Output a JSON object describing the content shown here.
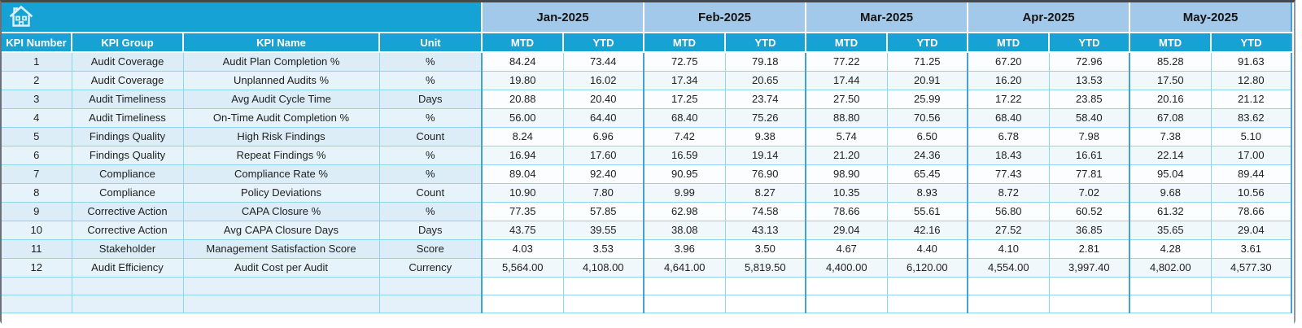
{
  "header": {
    "left_columns": [
      "KPI Number",
      "KPI Group",
      "KPI Name",
      "Unit"
    ],
    "months": [
      "Jan-2025",
      "Feb-2025",
      "Mar-2025",
      "Apr-2025",
      "May-2025"
    ],
    "sub_columns": [
      "MTD",
      "YTD"
    ],
    "home_icon": "home"
  },
  "colors": {
    "header_cyan": "#17a2d5",
    "month_band_blue": "#a3c9ea",
    "left_cell_blue": "#dcedf8",
    "gridline_cyan": "#8ed6ea",
    "group_border_blue": "#47a1ce"
  },
  "rows": [
    {
      "number": "1",
      "group": "Audit Coverage",
      "name": "Audit Plan Completion %",
      "unit": "%",
      "values": [
        "84.24",
        "73.44",
        "72.75",
        "79.18",
        "77.22",
        "71.25",
        "67.20",
        "72.96",
        "85.28",
        "91.63"
      ]
    },
    {
      "number": "2",
      "group": "Audit Coverage",
      "name": "Unplanned Audits %",
      "unit": "%",
      "values": [
        "19.80",
        "16.02",
        "17.34",
        "20.65",
        "17.44",
        "20.91",
        "16.20",
        "13.53",
        "17.50",
        "12.80"
      ]
    },
    {
      "number": "3",
      "group": "Audit Timeliness",
      "name": "Avg Audit Cycle Time",
      "unit": "Days",
      "values": [
        "20.88",
        "20.40",
        "17.25",
        "23.74",
        "27.50",
        "25.99",
        "17.22",
        "23.85",
        "20.16",
        "21.12"
      ]
    },
    {
      "number": "4",
      "group": "Audit Timeliness",
      "name": "On-Time Audit Completion %",
      "unit": "%",
      "values": [
        "56.00",
        "64.40",
        "68.40",
        "75.26",
        "88.80",
        "70.56",
        "68.40",
        "58.40",
        "67.08",
        "83.62"
      ]
    },
    {
      "number": "5",
      "group": "Findings Quality",
      "name": "High Risk Findings",
      "unit": "Count",
      "values": [
        "8.24",
        "6.96",
        "7.42",
        "9.38",
        "5.74",
        "6.50",
        "6.78",
        "7.98",
        "7.38",
        "5.10"
      ]
    },
    {
      "number": "6",
      "group": "Findings Quality",
      "name": "Repeat Findings %",
      "unit": "%",
      "values": [
        "16.94",
        "17.60",
        "16.59",
        "19.14",
        "21.20",
        "24.36",
        "18.43",
        "16.61",
        "22.14",
        "17.00"
      ]
    },
    {
      "number": "7",
      "group": "Compliance",
      "name": "Compliance Rate %",
      "unit": "%",
      "values": [
        "89.04",
        "92.40",
        "90.95",
        "76.90",
        "98.90",
        "65.45",
        "77.43",
        "77.81",
        "95.04",
        "89.44"
      ]
    },
    {
      "number": "8",
      "group": "Compliance",
      "name": "Policy Deviations",
      "unit": "Count",
      "values": [
        "10.90",
        "7.80",
        "9.99",
        "8.27",
        "10.35",
        "8.93",
        "8.72",
        "7.02",
        "9.68",
        "10.56"
      ]
    },
    {
      "number": "9",
      "group": "Corrective Action",
      "name": "CAPA Closure %",
      "unit": "%",
      "values": [
        "77.35",
        "57.85",
        "62.98",
        "74.58",
        "78.66",
        "55.61",
        "56.80",
        "60.52",
        "61.32",
        "78.66"
      ]
    },
    {
      "number": "10",
      "group": "Corrective Action",
      "name": "Avg CAPA Closure Days",
      "unit": "Days",
      "values": [
        "43.75",
        "39.55",
        "38.08",
        "43.13",
        "29.04",
        "42.16",
        "27.52",
        "36.85",
        "35.65",
        "29.04"
      ]
    },
    {
      "number": "11",
      "group": "Stakeholder",
      "name": "Management Satisfaction Score",
      "unit": "Score",
      "values": [
        "4.03",
        "3.53",
        "3.96",
        "3.50",
        "4.67",
        "4.40",
        "4.10",
        "2.81",
        "4.28",
        "3.61"
      ]
    },
    {
      "number": "12",
      "group": "Audit Efficiency",
      "name": "Audit Cost per Audit",
      "unit": "Currency",
      "values": [
        "5,564.00",
        "4,108.00",
        "4,641.00",
        "5,819.50",
        "4,400.00",
        "6,120.00",
        "4,554.00",
        "3,997.40",
        "4,802.00",
        "4,577.30"
      ]
    }
  ],
  "empty_row_count": 2
}
